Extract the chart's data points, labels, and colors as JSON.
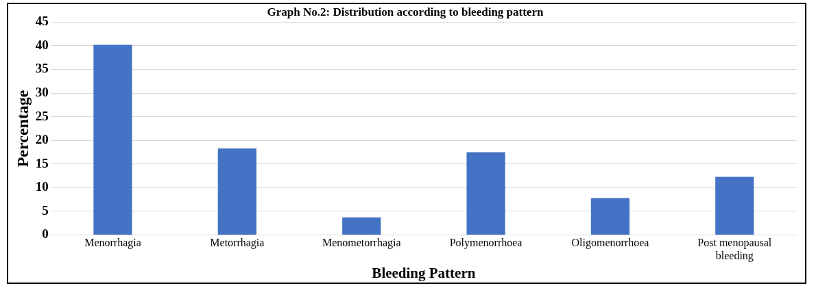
{
  "chart_data": {
    "type": "bar",
    "title": "Graph No.2: Distribution according to bleeding pattern",
    "xlabel": "Bleeding Pattern",
    "ylabel": "Percentage",
    "categories": [
      "Menorrhagia",
      "Metorrhagia",
      "Menometorrhagia",
      "Polymenorrhoea",
      "Oligomenorrhoea",
      "Post menopausal bleeding"
    ],
    "values": [
      40.2,
      18.3,
      3.7,
      17.5,
      7.8,
      12.3
    ],
    "color": "#4472c4",
    "ylim": [
      0,
      45
    ],
    "yticks": [
      0,
      5,
      10,
      15,
      20,
      25,
      30,
      35,
      40,
      45
    ],
    "grid": "y",
    "legend": false
  }
}
